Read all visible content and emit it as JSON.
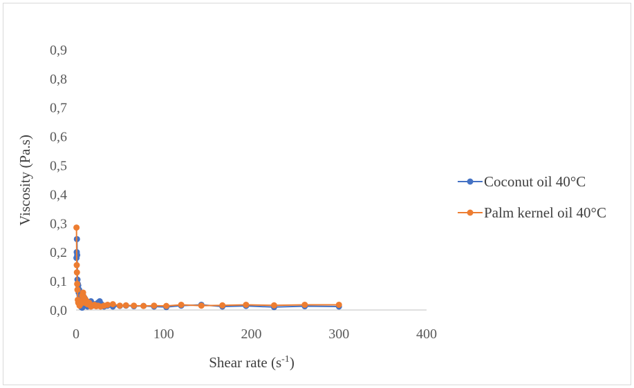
{
  "chart_data": {
    "type": "scatter",
    "xlabel": "Shear rate (s",
    "xlabel_superscript": "-1",
    "xlabel_close": ")",
    "ylabel": "Viscosity  (Pa.s)",
    "xlim": [
      0,
      400
    ],
    "ylim": [
      0,
      1.0
    ],
    "x_ticks": [
      "0",
      "100",
      "200",
      "300",
      "400"
    ],
    "y_ticks": [
      "0,0",
      "0,1",
      "0,2",
      "0,3",
      "0,4",
      "0,5",
      "0,6",
      "0,7",
      "0,8",
      "0,9"
    ],
    "grid": false,
    "legend_position": "right",
    "series": [
      {
        "name": "Coconut oil 40°C",
        "color": "#4472c4",
        "points": [
          [
            0.5,
            0.18
          ],
          [
            0.8,
            0.2
          ],
          [
            1.0,
            0.245
          ],
          [
            1.3,
            0.19
          ],
          [
            1.6,
            0.105
          ],
          [
            2,
            0.09
          ],
          [
            2.5,
            0.085
          ],
          [
            3,
            0.06
          ],
          [
            3.5,
            0.07
          ],
          [
            4,
            0.05
          ],
          [
            4.5,
            0.03
          ],
          [
            5,
            0.02
          ],
          [
            6,
            0.01
          ],
          [
            7,
            0.008
          ],
          [
            8,
            0.05
          ],
          [
            9,
            0.03
          ],
          [
            10,
            0.04
          ],
          [
            11,
            0.02
          ],
          [
            12,
            0.015
          ],
          [
            13,
            0.012
          ],
          [
            15,
            0.018
          ],
          [
            17,
            0.03
          ],
          [
            19,
            0.015
          ],
          [
            21,
            0.02
          ],
          [
            23,
            0.018
          ],
          [
            25,
            0.025
          ],
          [
            27,
            0.03
          ],
          [
            29,
            0.02
          ],
          [
            32,
            0.012
          ],
          [
            36,
            0.015
          ],
          [
            42,
            0.012
          ],
          [
            50,
            0.014
          ],
          [
            57,
            0.015
          ],
          [
            66,
            0.013
          ],
          [
            77,
            0.014
          ],
          [
            89,
            0.012
          ],
          [
            103,
            0.01
          ],
          [
            120,
            0.015
          ],
          [
            143,
            0.018
          ],
          [
            167,
            0.012
          ],
          [
            194,
            0.014
          ],
          [
            226,
            0.01
          ],
          [
            261,
            0.013
          ],
          [
            300,
            0.012
          ]
        ]
      },
      {
        "name": "Palm kernel oil 40°C",
        "color": "#ed7d31",
        "points": [
          [
            0.5,
            0.285
          ],
          [
            0.8,
            0.155
          ],
          [
            1.0,
            0.13
          ],
          [
            1.3,
            0.09
          ],
          [
            1.6,
            0.07
          ],
          [
            2,
            0.035
          ],
          [
            2.5,
            0.025
          ],
          [
            3,
            0.03
          ],
          [
            4,
            0.015
          ],
          [
            5,
            0.02
          ],
          [
            6,
            0.03
          ],
          [
            7,
            0.05
          ],
          [
            8,
            0.06
          ],
          [
            9,
            0.045
          ],
          [
            10,
            0.025
          ],
          [
            11,
            0.035
          ],
          [
            12,
            0.03
          ],
          [
            13,
            0.02
          ],
          [
            15,
            0.025
          ],
          [
            17,
            0.012
          ],
          [
            19,
            0.015
          ],
          [
            21,
            0.018
          ],
          [
            23,
            0.013
          ],
          [
            25,
            0.015
          ],
          [
            28,
            0.012
          ],
          [
            32,
            0.015
          ],
          [
            36,
            0.018
          ],
          [
            42,
            0.02
          ],
          [
            50,
            0.015
          ],
          [
            57,
            0.016
          ],
          [
            66,
            0.015
          ],
          [
            77,
            0.014
          ],
          [
            89,
            0.015
          ],
          [
            103,
            0.014
          ],
          [
            120,
            0.018
          ],
          [
            143,
            0.015
          ],
          [
            167,
            0.016
          ],
          [
            194,
            0.018
          ],
          [
            226,
            0.016
          ],
          [
            261,
            0.018
          ],
          [
            300,
            0.018
          ]
        ]
      }
    ]
  }
}
